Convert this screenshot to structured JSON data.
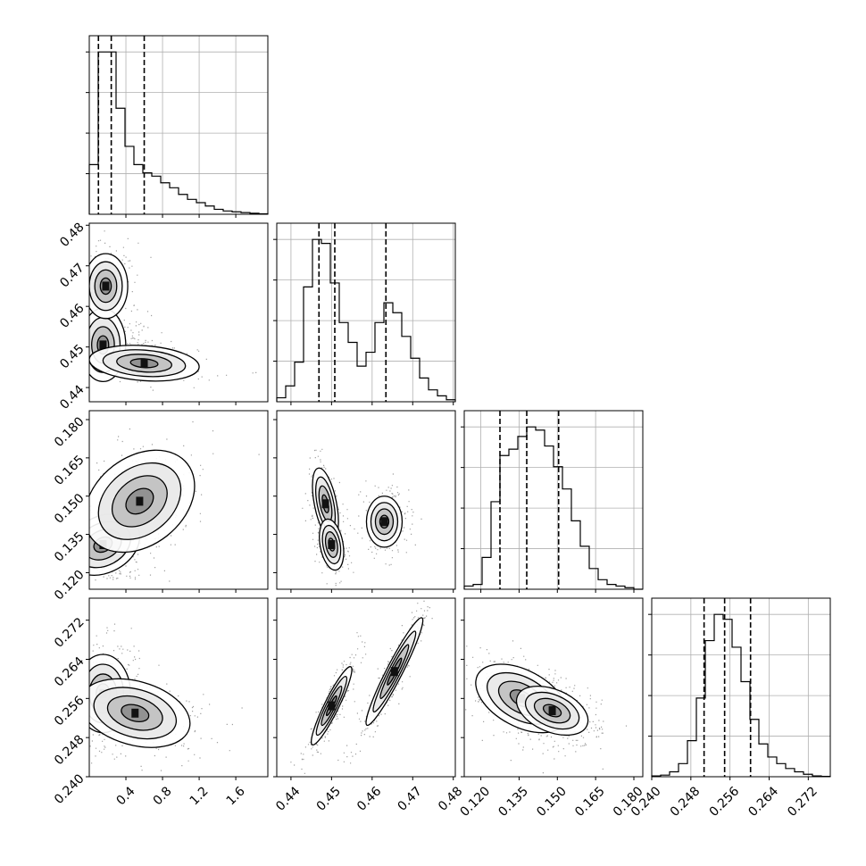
{
  "chart_data": {
    "type": "corner",
    "parameters": [
      {
        "id": "p0",
        "label": "",
        "range": [
          0.0,
          1.95
        ],
        "ticks": [
          0.4,
          0.8,
          1.2,
          1.6
        ],
        "tick_labels": [
          "0.4",
          "0.8",
          "1.2",
          "1.6"
        ]
      },
      {
        "id": "p1",
        "label": "",
        "range": [
          0.4365,
          0.4805
        ],
        "ticks": [
          0.44,
          0.45,
          0.46,
          0.47,
          0.48
        ],
        "tick_labels": [
          "0.44",
          "0.45",
          "0.46",
          "0.47",
          "0.48"
        ]
      },
      {
        "id": "p2",
        "label": "",
        "range": [
          0.1135,
          0.1835
        ],
        "ticks": [
          0.12,
          0.135,
          0.15,
          0.165,
          0.18
        ],
        "tick_labels": [
          "0.120",
          "0.135",
          "0.150",
          "0.165",
          "0.180"
        ]
      },
      {
        "id": "p3",
        "label": "",
        "range": [
          0.24,
          0.2765
        ],
        "ticks": [
          0.24,
          0.248,
          0.256,
          0.264,
          0.272
        ],
        "tick_labels": [
          "0.240",
          "0.248",
          "0.256",
          "0.264",
          "0.272"
        ]
      }
    ],
    "histograms": [
      {
        "param": 0,
        "bin_edges_range": [
          0.0,
          1.95
        ],
        "counts": [
          30,
          98,
          98,
          64,
          41,
          30,
          25,
          23,
          19,
          16,
          12,
          9,
          7,
          5,
          3,
          2,
          1.5,
          1,
          0.6,
          0.3
        ],
        "quantiles": [
          0.1,
          0.24,
          0.6
        ]
      },
      {
        "param": 1,
        "bin_edges_range": [
          0.4365,
          0.4805
        ],
        "counts": [
          2,
          8,
          20,
          58,
          82,
          80,
          60,
          40,
          30,
          18,
          25,
          40,
          50,
          45,
          33,
          22,
          12,
          6,
          3,
          1
        ],
        "quantiles": [
          0.4469,
          0.4508,
          0.4634
        ]
      },
      {
        "param": 2,
        "bin_edges_range": [
          0.1135,
          0.1835
        ],
        "counts": [
          2,
          3,
          20,
          55,
          84,
          88,
          96,
          102,
          100,
          90,
          77,
          63,
          43,
          27,
          13,
          6,
          3,
          2,
          1,
          0
        ],
        "quantiles": [
          0.1275,
          0.138,
          0.1505
        ]
      },
      {
        "param": 3,
        "bin_edges_range": [
          0.24,
          0.2765
        ],
        "counts": [
          0.5,
          1,
          3,
          8,
          22,
          48,
          83,
          99,
          96,
          79,
          58,
          35,
          20,
          12,
          8,
          5,
          3,
          1.5,
          0.5,
          0.2
        ],
        "quantiles": [
          0.2507,
          0.2549,
          0.2602
        ]
      }
    ],
    "pairs": [
      {
        "x_param": 0,
        "y_param": 1,
        "modes": [
          {
            "mean": [
              0.15,
              0.4505
            ],
            "sigma": [
              0.2,
              0.0028
            ],
            "rho": 0.0,
            "weight": 0.55
          },
          {
            "mean": [
              0.18,
              0.465
            ],
            "sigma": [
              0.12,
              0.004
            ],
            "rho": 0.0,
            "weight": 0.3
          },
          {
            "mean": [
              0.6,
              0.446
            ],
            "sigma": [
              0.3,
              0.0022
            ],
            "rho": -0.2,
            "weight": 0.15
          }
        ]
      },
      {
        "x_param": 0,
        "y_param": 2,
        "modes": [
          {
            "mean": [
              0.15,
              0.131
            ],
            "sigma": [
              0.2,
              0.006
            ],
            "rho": 0.25,
            "weight": 0.6
          },
          {
            "mean": [
              0.55,
              0.148
            ],
            "sigma": [
              0.3,
              0.01
            ],
            "rho": 0.3,
            "weight": 0.4
          }
        ]
      },
      {
        "x_param": 0,
        "y_param": 3,
        "modes": [
          {
            "mean": [
              0.15,
              0.257
            ],
            "sigma": [
              0.15,
              0.004
            ],
            "rho": 0.0,
            "weight": 0.6
          },
          {
            "mean": [
              0.5,
              0.253
            ],
            "sigma": [
              0.3,
              0.0035
            ],
            "rho": -0.3,
            "weight": 0.4
          }
        ]
      },
      {
        "x_param": 1,
        "y_param": 2,
        "modes": [
          {
            "mean": [
              0.4485,
              0.147
            ],
            "sigma": [
              0.0016,
              0.007
            ],
            "rho": -0.5,
            "weight": 0.35
          },
          {
            "mean": [
              0.45,
              0.131
            ],
            "sigma": [
              0.0015,
              0.005
            ],
            "rho": -0.3,
            "weight": 0.25
          },
          {
            "mean": [
              0.463,
              0.14
            ],
            "sigma": [
              0.0022,
              0.005
            ],
            "rho": 0.0,
            "weight": 0.4
          }
        ]
      },
      {
        "x_param": 1,
        "y_param": 3,
        "modes": [
          {
            "mean": [
              0.45,
              0.2545
            ],
            "sigma": [
              0.0025,
              0.004
            ],
            "rho": 0.92,
            "weight": 0.55
          },
          {
            "mean": [
              0.4655,
              0.2615
            ],
            "sigma": [
              0.0035,
              0.0055
            ],
            "rho": 0.95,
            "weight": 0.45
          }
        ]
      },
      {
        "x_param": 2,
        "y_param": 3,
        "modes": [
          {
            "mean": [
              0.136,
              0.256
            ],
            "sigma": [
              0.009,
              0.0035
            ],
            "rho": -0.45,
            "weight": 0.55
          },
          {
            "mean": [
              0.148,
              0.2535
            ],
            "sigma": [
              0.007,
              0.0025
            ],
            "rho": -0.4,
            "weight": 0.45
          }
        ]
      }
    ],
    "contour_levels": [
      "0.5 sigma",
      "1 sigma",
      "1.5 sigma",
      "2 sigma"
    ],
    "grid": true,
    "quantile_line_style": "dashed",
    "colors": {
      "line": "#000000",
      "grid": "#b0b0b0",
      "background": "#ffffff"
    }
  }
}
